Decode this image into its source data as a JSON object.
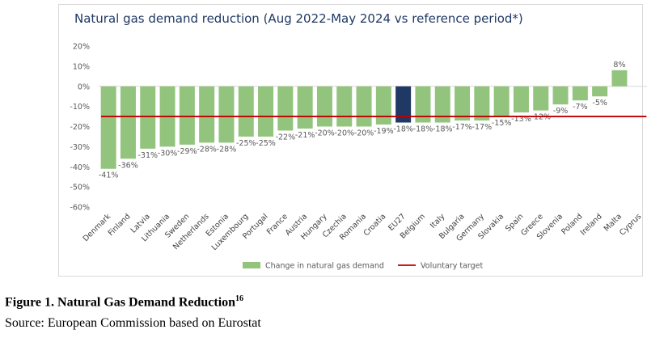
{
  "figure": {
    "caption": "Figure 1. Natural Gas Demand Reduction",
    "caption_sup": "16",
    "source": "Source: European Commission based on Eurostat"
  },
  "chart_data": {
    "type": "bar",
    "title": "Natural gas demand reduction (Aug 2022-May 2024 vs reference period*)",
    "xlabel": "",
    "ylabel": "",
    "ylim": [
      -60,
      20
    ],
    "yticks": [
      "20%",
      "10%",
      "0%",
      "-10%",
      "-20%",
      "-30%",
      "-40%",
      "-50%",
      "-60%"
    ],
    "categories": [
      "Denmark",
      "Finland",
      "Latvia",
      "Lithuania",
      "Sweden",
      "Netherlands",
      "Estonia",
      "Luxembourg",
      "Portugal",
      "France",
      "Austria",
      "Hungary",
      "Czechia",
      "Romania",
      "Croatia",
      "EU27",
      "Belgium",
      "Italy",
      "Bulgaria",
      "Germany",
      "Slovakia",
      "Spain",
      "Greece",
      "Slovenia",
      "Poland",
      "Ireland",
      "Malta",
      "Cyprus"
    ],
    "values": [
      -41,
      -36,
      -31,
      -30,
      -29,
      -28,
      -28,
      -25,
      -25,
      -22,
      -21,
      -20,
      -20,
      -20,
      -19,
      -18,
      -18,
      -18,
      -17,
      -17,
      -15,
      -13,
      -12,
      -9,
      -7,
      -5,
      8,
      null
    ],
    "data_labels": [
      "-41%",
      "-36%",
      "-31%",
      "-30%",
      "-29%",
      "-28%",
      "-28%",
      "-25%",
      "-25%",
      "-22%",
      "-21%",
      "-20%",
      "-20%",
      "-20%",
      "-19%",
      "-18%",
      "-18%",
      "-18%",
      "-17%",
      "-17%",
      "-15%",
      "-13%",
      "-12%",
      "-9%",
      "-7%",
      "-5%",
      "8%",
      ""
    ],
    "highlight_category": "EU27",
    "series": [
      {
        "name": "Change in natural gas demand",
        "color": "#93c47d"
      },
      {
        "name": "Voluntary target",
        "value": -15,
        "color": "#c00000"
      }
    ],
    "highlight_color": "#1f3864",
    "legend": "bottom",
    "grid": false
  }
}
